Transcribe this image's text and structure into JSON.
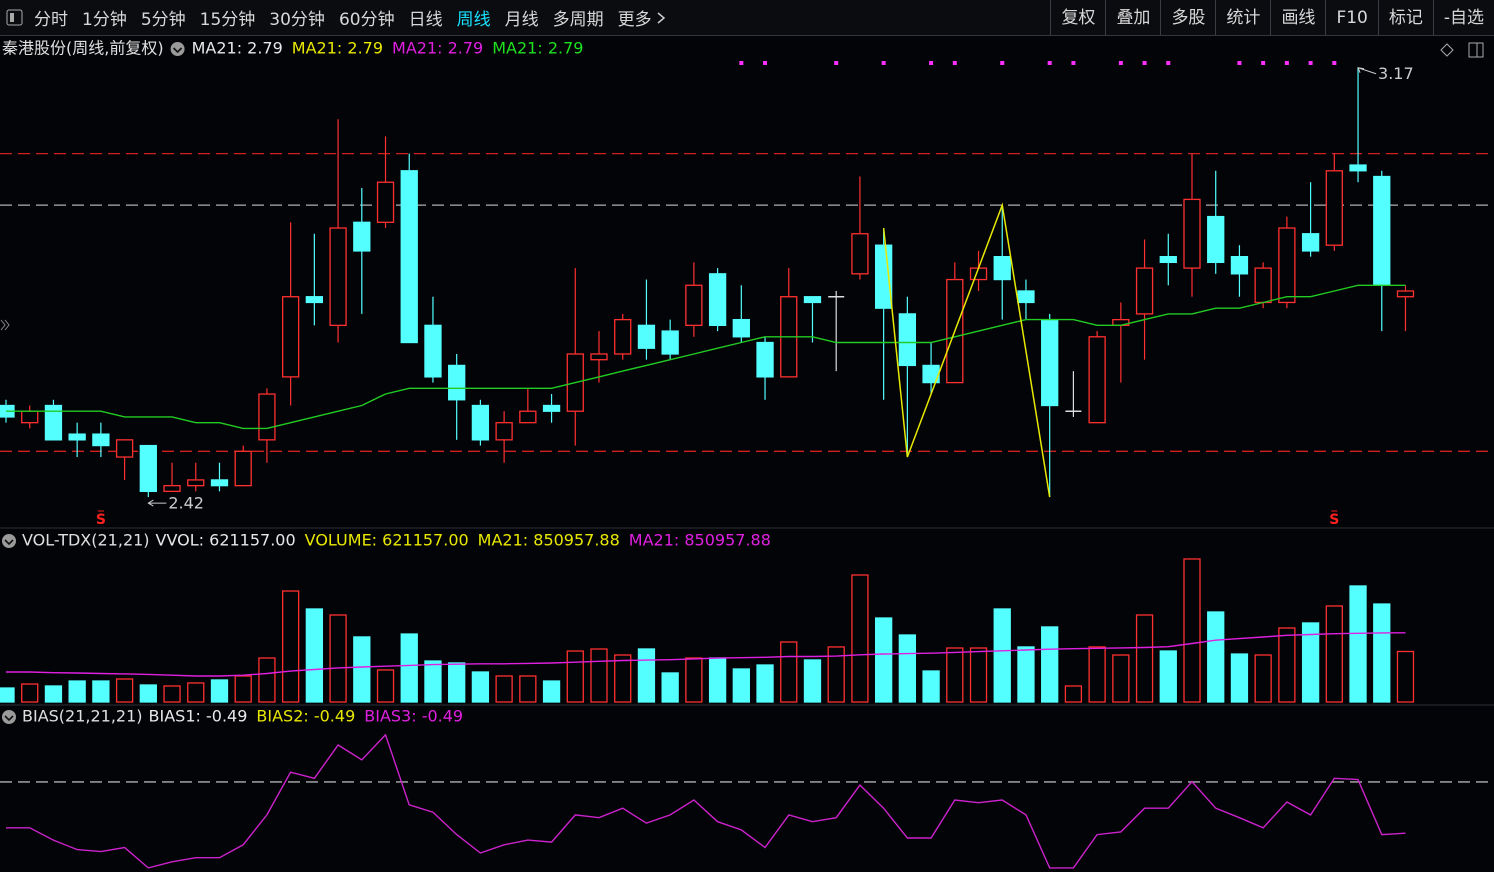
{
  "toolbar": {
    "periods": [
      "分时",
      "1分钟",
      "5分钟",
      "15分钟",
      "30分钟",
      "60分钟",
      "日线",
      "周线",
      "月线",
      "多周期",
      "更多"
    ],
    "active_period": 7,
    "tools": [
      "复权",
      "叠加",
      "多股",
      "统计",
      "画线",
      "F10",
      "标记",
      "-自选"
    ]
  },
  "chart_data": [
    {
      "type": "candlestick",
      "title": "秦港股份(周线,前复权)",
      "legend": [
        {
          "text": "MA21: 2.79",
          "color": "#e8e8e8"
        },
        {
          "text": "MA21: 2.79",
          "color": "#e8e800"
        },
        {
          "text": "MA21: 2.79",
          "color": "#e020e0"
        },
        {
          "text": "MA21: 2.79",
          "color": "#20e020"
        }
      ],
      "categories": [
        null,
        null,
        null,
        null,
        null,
        null,
        null,
        null,
        null,
        null,
        null,
        null,
        null,
        null,
        null,
        null,
        null,
        null,
        null,
        null,
        null,
        null,
        null,
        null,
        null,
        null,
        null,
        null,
        null,
        null,
        null,
        null,
        null,
        null,
        null,
        null,
        null,
        null,
        null,
        null,
        null,
        null,
        null,
        null,
        null,
        null,
        null,
        null,
        null,
        null,
        null,
        null,
        null,
        null,
        null,
        null,
        null,
        null,
        null,
        null
      ],
      "open": [
        2.58,
        2.55,
        2.58,
        2.53,
        2.53,
        2.49,
        2.51,
        2.43,
        2.44,
        2.45,
        2.44,
        2.52,
        2.63,
        2.77,
        2.72,
        2.9,
        2.9,
        2.99,
        2.72,
        2.65,
        2.58,
        2.52,
        2.55,
        2.58,
        2.57,
        2.66,
        2.67,
        2.72,
        2.71,
        2.72,
        2.81,
        2.73,
        2.69,
        2.63,
        2.77,
        2.77,
        2.81,
        2.86,
        2.74,
        2.65,
        2.62,
        2.8,
        2.84,
        2.78,
        2.73,
        2.57,
        2.55,
        2.72,
        2.74,
        2.84,
        2.82,
        2.91,
        2.84,
        2.76,
        2.76,
        2.88,
        2.86,
        3.0,
        2.98,
        2.77
      ],
      "high": [
        2.59,
        2.58,
        2.59,
        2.55,
        2.55,
        2.52,
        2.51,
        2.48,
        2.48,
        2.48,
        2.51,
        2.61,
        2.9,
        2.88,
        3.08,
        2.96,
        3.05,
        3.02,
        2.77,
        2.67,
        2.59,
        2.57,
        2.61,
        2.6,
        2.82,
        2.71,
        2.74,
        2.8,
        2.73,
        2.83,
        2.82,
        2.79,
        2.7,
        2.82,
        2.77,
        2.78,
        2.98,
        2.89,
        2.77,
        2.69,
        2.83,
        2.85,
        2.93,
        2.8,
        2.74,
        2.64,
        2.71,
        2.76,
        2.87,
        2.88,
        3.02,
        2.99,
        2.86,
        2.83,
        2.91,
        2.97,
        3.02,
        3.17,
        2.99,
        2.79
      ],
      "low": [
        2.55,
        2.54,
        2.52,
        2.49,
        2.49,
        2.45,
        2.42,
        2.43,
        2.43,
        2.43,
        2.44,
        2.48,
        2.58,
        2.72,
        2.69,
        2.74,
        2.89,
        2.69,
        2.62,
        2.52,
        2.51,
        2.48,
        2.55,
        2.55,
        2.51,
        2.62,
        2.66,
        2.66,
        2.66,
        2.7,
        2.71,
        2.69,
        2.59,
        2.63,
        2.69,
        2.64,
        2.8,
        2.59,
        2.49,
        2.6,
        2.62,
        2.78,
        2.73,
        2.73,
        2.42,
        2.56,
        2.55,
        2.62,
        2.66,
        2.79,
        2.77,
        2.81,
        2.77,
        2.75,
        2.75,
        2.84,
        2.85,
        2.97,
        2.71,
        2.71
      ],
      "close": [
        2.56,
        2.57,
        2.52,
        2.52,
        2.51,
        2.52,
        2.43,
        2.44,
        2.45,
        2.44,
        2.5,
        2.6,
        2.77,
        2.76,
        2.89,
        2.85,
        2.97,
        2.69,
        2.63,
        2.59,
        2.52,
        2.55,
        2.57,
        2.57,
        2.67,
        2.67,
        2.73,
        2.68,
        2.67,
        2.79,
        2.72,
        2.7,
        2.63,
        2.77,
        2.76,
        2.77,
        2.88,
        2.75,
        2.65,
        2.62,
        2.8,
        2.82,
        2.8,
        2.76,
        2.58,
        2.57,
        2.7,
        2.73,
        2.82,
        2.83,
        2.94,
        2.83,
        2.81,
        2.82,
        2.89,
        2.85,
        2.99,
        2.99,
        2.79,
        2.78
      ],
      "up_color": "#ff3030",
      "down_color": "#54ffff",
      "flat_color": "#dddddd",
      "series": [
        {
          "name": "MA21",
          "color": "#22cc22",
          "values": [
            2.57,
            2.57,
            2.57,
            2.57,
            2.57,
            2.56,
            2.56,
            2.56,
            2.55,
            2.55,
            2.54,
            2.54,
            2.55,
            2.56,
            2.57,
            2.58,
            2.6,
            2.61,
            2.61,
            2.61,
            2.61,
            2.61,
            2.61,
            2.61,
            2.62,
            2.63,
            2.64,
            2.65,
            2.66,
            2.67,
            2.68,
            2.69,
            2.7,
            2.7,
            2.7,
            2.69,
            2.69,
            2.69,
            2.69,
            2.69,
            2.7,
            2.71,
            2.72,
            2.73,
            2.73,
            2.73,
            2.72,
            2.72,
            2.73,
            2.74,
            2.74,
            2.75,
            2.75,
            2.76,
            2.77,
            2.77,
            2.78,
            2.79,
            2.79,
            2.79
          ]
        }
      ],
      "levels": [
        {
          "value": 3.02,
          "color": "#d02020"
        },
        {
          "value": 2.93,
          "color": "#b0b0b0"
        },
        {
          "value": 2.5,
          "color": "#d02020"
        }
      ],
      "zigzag": {
        "color": "#e8e800",
        "x": [
          37,
          38,
          42,
          44
        ],
        "values": [
          2.89,
          2.49,
          2.93,
          2.42
        ]
      },
      "signals": {
        "color": "#ff30ff",
        "x": [
          31,
          32,
          35,
          37,
          39,
          40,
          42,
          44,
          45,
          47,
          48,
          49,
          52,
          53,
          54,
          55,
          56
        ]
      },
      "sell_marks": {
        "label": "S",
        "color": "#ff2020",
        "x": [
          4,
          56
        ]
      },
      "ylim": [
        2.38,
        3.18
      ]
    },
    {
      "type": "bar",
      "title": "VOL-TDX(21,21)",
      "legend": [
        {
          "text": "VVOL: 621157.00",
          "color": "#e8e8e8"
        },
        {
          "text": "VOLUME: 621157.00",
          "color": "#e8e800"
        },
        {
          "text": "MA21: 850957.88",
          "color": "#e8e800"
        },
        {
          "text": "MA21: 850957.88",
          "color": "#e020e0"
        }
      ],
      "values": [
        172000,
        221000,
        197000,
        258000,
        258000,
        283000,
        209000,
        197000,
        234000,
        271000,
        320000,
        541000,
        1365000,
        1144000,
        1070000,
        800000,
        394000,
        836000,
        504000,
        480000,
        369000,
        320000,
        320000,
        258000,
        627000,
        652000,
        578000,
        652000,
        357000,
        541000,
        541000,
        406000,
        455000,
        738000,
        517000,
        677000,
        1562000,
        1033000,
        824000,
        381000,
        664000,
        664000,
        1144000,
        677000,
        923000,
        197000,
        677000,
        578000,
        1070000,
        627000,
        1759000,
        1107000,
        590000,
        578000,
        910000,
        972000,
        1181000,
        1427000,
        1205000,
        621157
      ],
      "series": [
        {
          "name": "MA21",
          "color": "#e020e0",
          "values": [
            369000,
            369000,
            360000,
            357000,
            350000,
            345000,
            340000,
            330000,
            320000,
            320000,
            330000,
            350000,
            380000,
            400000,
            420000,
            430000,
            440000,
            450000,
            460000,
            465000,
            470000,
            470000,
            475000,
            480000,
            490000,
            500000,
            510000,
            515000,
            520000,
            530000,
            540000,
            545000,
            550000,
            560000,
            560000,
            565000,
            580000,
            590000,
            595000,
            600000,
            610000,
            620000,
            630000,
            640000,
            650000,
            655000,
            660000,
            665000,
            670000,
            680000,
            720000,
            760000,
            780000,
            800000,
            820000,
            830000,
            840000,
            845000,
            850000,
            850957.88
          ]
        }
      ],
      "ylim": [
        0,
        1808000
      ]
    },
    {
      "type": "line",
      "title": "BIAS(21,21,21)",
      "legend": [
        {
          "text": "BIAS1: -0.49",
          "color": "#e8e8e8"
        },
        {
          "text": "BIAS2: -0.49",
          "color": "#e8e800"
        },
        {
          "text": "BIAS3: -0.49",
          "color": "#e020e0"
        }
      ],
      "series": [
        {
          "name": "BIAS1",
          "color": "#cc22cc",
          "values": [
            0.3,
            0.3,
            -1.5,
            -2.9,
            -3.2,
            -2.6,
            -5.6,
            -4.7,
            -4.1,
            -4.1,
            -2.2,
            2.2,
            8.5,
            7.6,
            12.5,
            10.3,
            14.0,
            3.7,
            2.6,
            -0.7,
            -3.4,
            -2.2,
            -1.5,
            -1.8,
            2.2,
            1.8,
            3.2,
            1.0,
            2.2,
            4.4,
            1.2,
            0.0,
            -2.6,
            2.2,
            1.2,
            1.8,
            6.6,
            3.2,
            -1.2,
            -1.2,
            4.4,
            4.0,
            4.4,
            2.2,
            -5.6,
            -5.6,
            -0.7,
            -0.3,
            3.2,
            3.2,
            7.1,
            3.2,
            1.8,
            0.3,
            4.1,
            2.2,
            7.6,
            7.4,
            -0.7,
            -0.49
          ]
        }
      ],
      "levels": [
        {
          "value": 7.06,
          "color": "#b0b0b0"
        }
      ],
      "ylim": [
        -6.2,
        15
      ]
    }
  ]
}
